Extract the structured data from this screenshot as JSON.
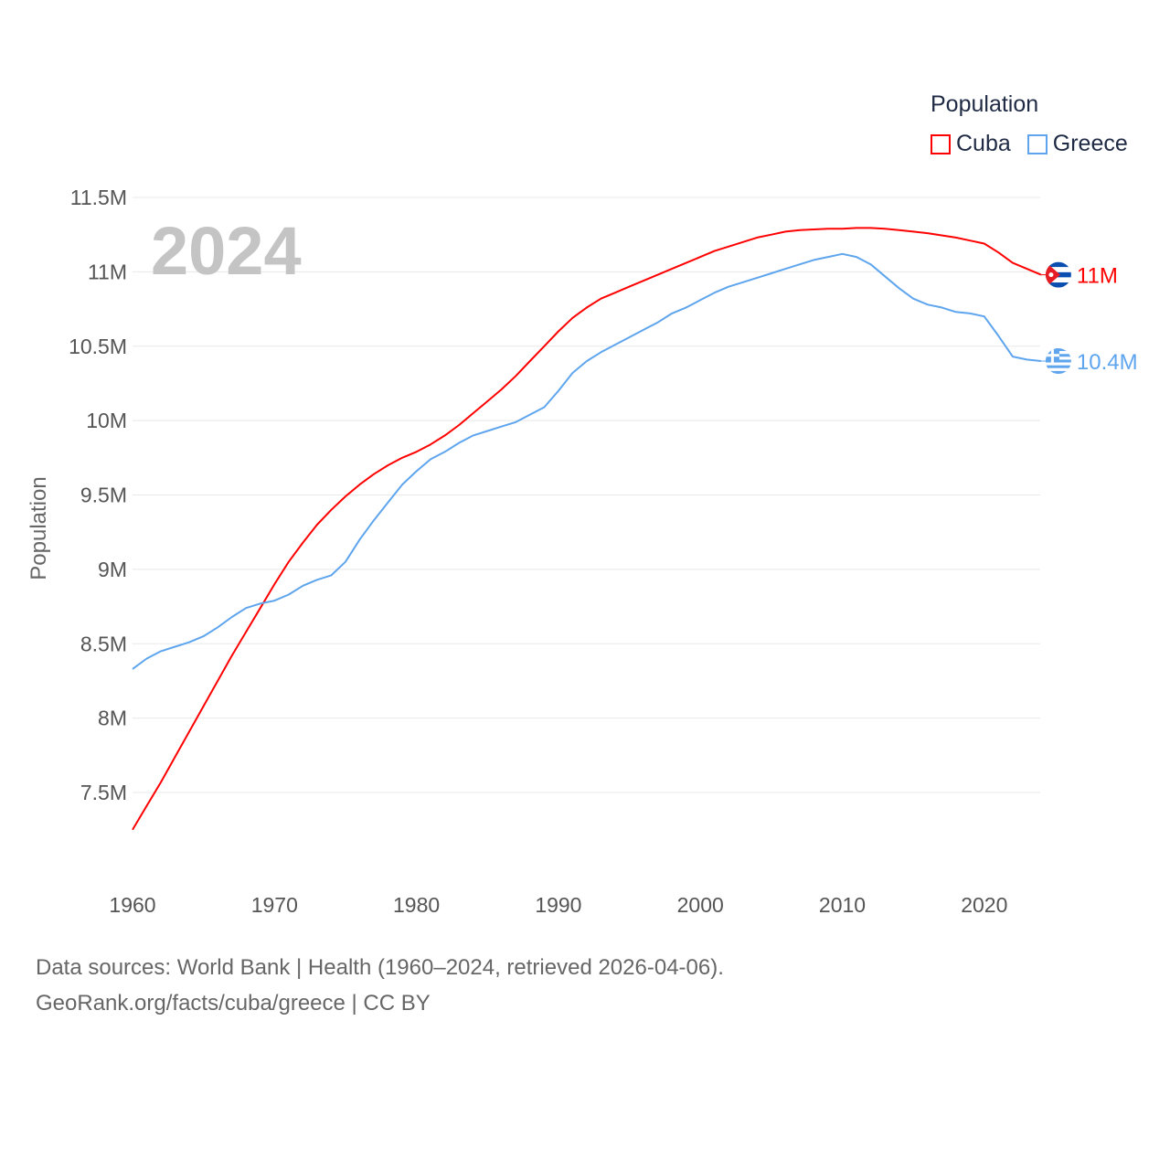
{
  "chart_data": {
    "type": "line",
    "title": "Population",
    "year_label": "2024",
    "xlabel": "",
    "ylabel": "Population",
    "xlim": [
      1960,
      2024
    ],
    "ylim": [
      7.2,
      11.5
    ],
    "x_ticks": [
      "1960",
      "1970",
      "1980",
      "1990",
      "2000",
      "2010",
      "2020"
    ],
    "y_ticks": [
      {
        "value": 11.5,
        "label": "11.5M"
      },
      {
        "value": 11,
        "label": "11M"
      },
      {
        "value": 10.5,
        "label": "10.5M"
      },
      {
        "value": 10,
        "label": "10M"
      },
      {
        "value": 9.5,
        "label": "9.5M"
      },
      {
        "value": 9,
        "label": "9M"
      },
      {
        "value": 8.5,
        "label": "8.5M"
      },
      {
        "value": 8,
        "label": "8M"
      },
      {
        "value": 7.5,
        "label": "7.5M"
      }
    ],
    "grid": true,
    "legend_placement": "top-right",
    "x": [
      1960,
      1961,
      1962,
      1963,
      1964,
      1965,
      1966,
      1967,
      1968,
      1969,
      1970,
      1971,
      1972,
      1973,
      1974,
      1975,
      1976,
      1977,
      1978,
      1979,
      1980,
      1981,
      1982,
      1983,
      1984,
      1985,
      1986,
      1987,
      1988,
      1989,
      1990,
      1991,
      1992,
      1993,
      1994,
      1995,
      1996,
      1997,
      1998,
      1999,
      2000,
      2001,
      2002,
      2003,
      2004,
      2005,
      2006,
      2007,
      2008,
      2009,
      2010,
      2011,
      2012,
      2013,
      2014,
      2015,
      2016,
      2017,
      2018,
      2019,
      2020,
      2021,
      2022,
      2023,
      2024
    ],
    "series": [
      {
        "name": "Cuba",
        "color": "#ff0000",
        "end_label": "11M",
        "values": [
          7.25,
          7.41,
          7.57,
          7.74,
          7.91,
          8.08,
          8.25,
          8.42,
          8.58,
          8.74,
          8.9,
          9.05,
          9.18,
          9.3,
          9.4,
          9.49,
          9.57,
          9.64,
          9.7,
          9.75,
          9.79,
          9.84,
          9.9,
          9.97,
          10.05,
          10.13,
          10.21,
          10.3,
          10.4,
          10.5,
          10.6,
          10.69,
          10.76,
          10.82,
          10.86,
          10.9,
          10.94,
          10.98,
          11.02,
          11.06,
          11.1,
          11.14,
          11.17,
          11.2,
          11.23,
          11.25,
          11.27,
          11.28,
          11.285,
          11.29,
          11.29,
          11.295,
          11.295,
          11.29,
          11.28,
          11.27,
          11.26,
          11.245,
          11.23,
          11.21,
          11.19,
          11.13,
          11.06,
          11.02,
          10.98
        ]
      },
      {
        "name": "Greece",
        "color": "#5ea5ee",
        "end_label": "10.4M",
        "values": [
          8.33,
          8.4,
          8.45,
          8.48,
          8.51,
          8.55,
          8.61,
          8.68,
          8.74,
          8.77,
          8.79,
          8.83,
          8.89,
          8.93,
          8.96,
          9.05,
          9.2,
          9.33,
          9.45,
          9.57,
          9.66,
          9.74,
          9.79,
          9.85,
          9.9,
          9.93,
          9.96,
          9.99,
          10.04,
          10.09,
          10.2,
          10.32,
          10.4,
          10.46,
          10.51,
          10.56,
          10.61,
          10.66,
          10.72,
          10.76,
          10.81,
          10.86,
          10.9,
          10.93,
          10.96,
          10.99,
          11.02,
          11.05,
          11.08,
          11.1,
          11.12,
          11.1,
          11.05,
          10.97,
          10.89,
          10.82,
          10.78,
          10.76,
          10.73,
          10.72,
          10.7,
          10.57,
          10.43,
          10.41,
          10.4
        ]
      }
    ]
  },
  "legend": {
    "title": "Population",
    "items": [
      "Cuba",
      "Greece"
    ]
  },
  "footer": {
    "line1": "Data sources: World Bank | Health (1960–2024, retrieved 2026-04-06).",
    "line2": "GeoRank.org/facts/cuba/greece | CC BY"
  }
}
